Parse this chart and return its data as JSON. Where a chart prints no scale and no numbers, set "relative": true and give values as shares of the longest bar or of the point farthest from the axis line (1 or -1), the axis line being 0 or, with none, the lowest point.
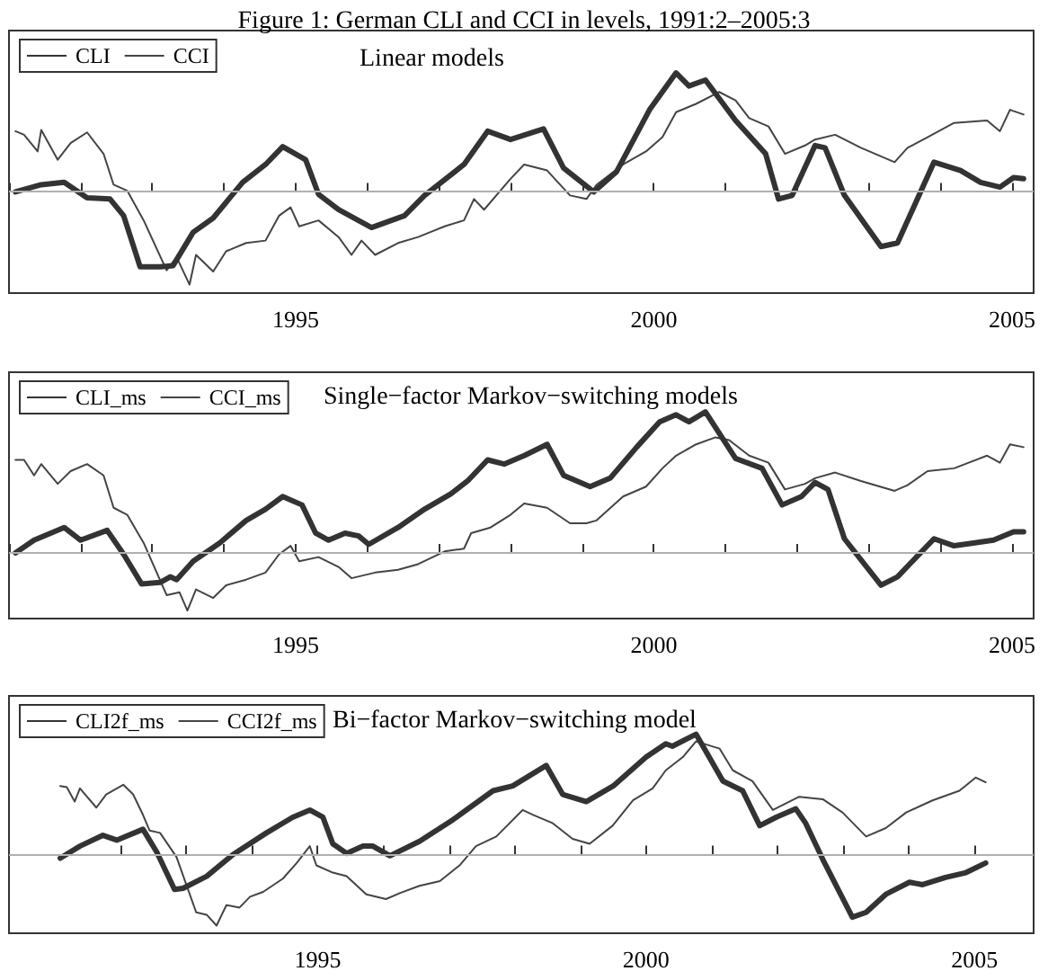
{
  "chart_data": [
    {
      "type": "line",
      "title": "Figure 1: German CLI and CCI in levels, 1991:2–2005:3",
      "subtitle": "Linear models",
      "relative": true,
      "legend": "top left",
      "tick_labels": "x",
      "grid": false,
      "marker": "none",
      "line_style": "solid",
      "xlim": [
        1991.0,
        2005.3
      ],
      "xticks": [
        {
          "value": 1991,
          "label": null
        },
        {
          "value": 1992,
          "label": null
        },
        {
          "value": 1993,
          "label": null
        },
        {
          "value": 1994,
          "label": null
        },
        1995,
        {
          "value": 1996,
          "label": null
        },
        {
          "value": 1997,
          "label": null
        },
        {
          "value": 1998,
          "label": null
        },
        {
          "value": 1999,
          "label": null
        },
        2000,
        {
          "value": 2001,
          "label": null
        },
        {
          "value": 2002,
          "label": null
        },
        {
          "value": 2003,
          "label": null
        },
        {
          "value": 2004,
          "label": null
        },
        2005
      ],
      "ref_lines": [
        {
          "axis": "y",
          "value": 0,
          "color": "#b0b0b0"
        }
      ],
      "series": [
        {
          "name": "CLI",
          "color": "#333333",
          "x": [
            1991.09,
            1991.45,
            1991.77,
            1992.09,
            1992.41,
            1992.6,
            1992.83,
            1993.11,
            1993.29,
            1993.57,
            1993.85,
            1994.26,
            1994.58,
            1994.82,
            1995.14,
            1995.32,
            1995.6,
            1996.06,
            1996.52,
            1996.8,
            1997.35,
            1997.68,
            1998.0,
            1998.46,
            1998.74,
            1999.16,
            1999.48,
            1999.94,
            2000.31,
            2000.49,
            2000.72,
            2001.14,
            2001.56,
            2001.74,
            2001.93,
            2002.25,
            2002.39,
            2002.66,
            2003.17,
            2003.4,
            2003.91,
            2004.28,
            2004.56,
            2004.83,
            2005.02,
            2005.16
          ],
          "values": [
            0,
            0.06,
            0.08,
            -0.05,
            -0.06,
            -0.2,
            -0.63,
            -0.63,
            -0.62,
            -0.34,
            -0.22,
            0.08,
            0.23,
            0.38,
            0.27,
            -0.02,
            -0.15,
            -0.3,
            -0.2,
            -0.03,
            0.23,
            0.51,
            0.44,
            0.53,
            0.2,
            0,
            0.17,
            0.69,
            1,
            0.89,
            0.94,
            0.6,
            0.32,
            -0.06,
            -0.03,
            0.39,
            0.37,
            -0.03,
            -0.46,
            -0.43,
            0.25,
            0.18,
            0.08,
            0.04,
            0.12,
            0.11
          ]
        },
        {
          "name": "CCI",
          "color": "#444444",
          "x": [
            1991.09,
            1991.21,
            1991.4,
            1991.45,
            1991.68,
            1991.86,
            1992.09,
            1992.32,
            1992.46,
            1992.65,
            1992.88,
            1993.2,
            1993.34,
            1993.52,
            1993.61,
            1993.85,
            1994.03,
            1994.31,
            1994.58,
            1994.77,
            1994.93,
            1995.05,
            1995.32,
            1995.6,
            1995.78,
            1995.92,
            1996.11,
            1996.43,
            1996.71,
            1997.08,
            1997.35,
            1997.49,
            1997.63,
            1998.0,
            1998.19,
            1998.51,
            1998.83,
            1999.06,
            1999.2,
            1999.57,
            1999.89,
            2000.12,
            2000.31,
            2000.59,
            2000.91,
            2001.14,
            2001.33,
            2001.6,
            2001.83,
            2002.11,
            2002.25,
            2002.53,
            2002.89,
            2003.36,
            2003.54,
            2003.82,
            2004.19,
            2004.65,
            2004.83,
            2004.97,
            2005.16
          ],
          "values": [
            0.51,
            0.48,
            0.34,
            0.52,
            0.27,
            0.41,
            0.5,
            0.32,
            0.06,
            0.01,
            -0.24,
            -0.66,
            -0.55,
            -0.78,
            -0.53,
            -0.67,
            -0.5,
            -0.43,
            -0.41,
            -0.2,
            -0.13,
            -0.29,
            -0.24,
            -0.38,
            -0.53,
            -0.41,
            -0.53,
            -0.43,
            -0.38,
            -0.29,
            -0.24,
            -0.06,
            -0.15,
            0.11,
            0.23,
            0.18,
            -0.03,
            -0.06,
            0.06,
            0.23,
            0.34,
            0.46,
            0.67,
            0.74,
            0.84,
            0.77,
            0.62,
            0.55,
            0.32,
            0.39,
            0.44,
            0.48,
            0.37,
            0.25,
            0.37,
            0.46,
            0.58,
            0.6,
            0.51,
            0.69,
            0.65
          ]
        }
      ]
    },
    {
      "type": "line",
      "title": "Single−factor Markov−switching models",
      "relative": true,
      "legend": "top left",
      "tick_labels": "x",
      "grid": false,
      "marker": "none",
      "line_style": "solid",
      "xlim": [
        1991.0,
        2005.3
      ],
      "xticks": [
        {
          "value": 1991,
          "label": null
        },
        {
          "value": 1992,
          "label": null
        },
        {
          "value": 1993,
          "label": null
        },
        {
          "value": 1994,
          "label": null
        },
        1995,
        {
          "value": 1996,
          "label": null
        },
        {
          "value": 1997,
          "label": null
        },
        {
          "value": 1998,
          "label": null
        },
        {
          "value": 1999,
          "label": null
        },
        2000,
        {
          "value": 2001,
          "label": null
        },
        {
          "value": 2002,
          "label": null
        },
        {
          "value": 2003,
          "label": null
        },
        {
          "value": 2004,
          "label": null
        },
        2005
      ],
      "ref_lines": [
        {
          "axis": "y",
          "value": 0,
          "color": "#b0b0b0"
        }
      ],
      "series": [
        {
          "name": "CLI_ms",
          "color": "#333333",
          "x": [
            1991.09,
            1991.35,
            1991.77,
            1992.0,
            1992.37,
            1992.6,
            1992.85,
            1993.11,
            1993.25,
            1993.34,
            1993.57,
            1993.94,
            1994.31,
            1994.58,
            1994.82,
            1995.09,
            1995.28,
            1995.46,
            1995.69,
            1995.88,
            1996.02,
            1996.43,
            1996.8,
            1997.17,
            1997.4,
            1997.68,
            1997.91,
            1998.19,
            1998.51,
            1998.74,
            1999.11,
            1999.39,
            1999.76,
            2000.08,
            2000.31,
            2000.49,
            2000.72,
            2001.14,
            2001.51,
            2001.79,
            2002.06,
            2002.25,
            2002.43,
            2002.66,
            2003.17,
            2003.4,
            2003.91,
            2004.19,
            2004.46,
            2004.74,
            2005.02,
            2005.16
          ],
          "values": [
            0,
            0.09,
            0.18,
            0.09,
            0.16,
            -0.01,
            -0.22,
            -0.21,
            -0.17,
            -0.19,
            -0.06,
            0.07,
            0.23,
            0.31,
            0.4,
            0.34,
            0.14,
            0.09,
            0.14,
            0.12,
            0.06,
            0.18,
            0.31,
            0.42,
            0.51,
            0.66,
            0.63,
            0.69,
            0.77,
            0.55,
            0.47,
            0.53,
            0.75,
            0.93,
            0.98,
            0.93,
            1,
            0.67,
            0.6,
            0.34,
            0.4,
            0.5,
            0.45,
            0.1,
            -0.23,
            -0.17,
            0.1,
            0.05,
            0.07,
            0.09,
            0.15,
            0.15
          ]
        },
        {
          "name": "CCI_ms",
          "color": "#444444",
          "x": [
            1991.09,
            1991.21,
            1991.35,
            1991.45,
            1991.68,
            1991.86,
            1992.09,
            1992.32,
            1992.46,
            1992.65,
            1992.88,
            1993.2,
            1993.38,
            1993.49,
            1993.61,
            1993.85,
            1994.03,
            1994.31,
            1994.58,
            1994.77,
            1994.93,
            1995.05,
            1995.32,
            1995.6,
            1995.78,
            1996.11,
            1996.43,
            1996.71,
            1997.08,
            1997.35,
            1997.45,
            1997.72,
            1998.0,
            1998.19,
            1998.51,
            1998.83,
            1999.06,
            1999.2,
            1999.57,
            1999.89,
            2000.12,
            2000.31,
            2000.59,
            2000.86,
            2001.05,
            2001.33,
            2001.6,
            2001.83,
            2002.11,
            2002.25,
            2002.53,
            2002.89,
            2003.36,
            2003.54,
            2003.82,
            2004.19,
            2004.65,
            2004.83,
            2004.97,
            2005.16
          ],
          "values": [
            0.66,
            0.66,
            0.55,
            0.63,
            0.49,
            0.58,
            0.63,
            0.55,
            0.32,
            0.27,
            0.07,
            -0.3,
            -0.28,
            -0.41,
            -0.26,
            -0.32,
            -0.23,
            -0.19,
            -0.14,
            -0.01,
            0.05,
            -0.06,
            -0.03,
            -0.1,
            -0.18,
            -0.14,
            -0.12,
            -0.08,
            0.01,
            0.03,
            0.14,
            0.18,
            0.27,
            0.35,
            0.32,
            0.21,
            0.21,
            0.23,
            0.4,
            0.47,
            0.6,
            0.69,
            0.77,
            0.82,
            0.8,
            0.69,
            0.64,
            0.45,
            0.49,
            0.53,
            0.57,
            0.51,
            0.44,
            0.48,
            0.58,
            0.6,
            0.69,
            0.64,
            0.77,
            0.75
          ]
        }
      ]
    },
    {
      "type": "line",
      "title": "Bi−factor Markov−switching model",
      "relative": true,
      "legend": "top left",
      "tick_labels": "x",
      "grid": false,
      "marker": "none",
      "line_style": "solid",
      "xlim": [
        1990.3,
        2005.9
      ],
      "xticks": [
        {
          "value": 1992,
          "label": null
        },
        {
          "value": 1993,
          "label": null
        },
        {
          "value": 1994,
          "label": null
        },
        1995,
        {
          "value": 1996,
          "label": null
        },
        {
          "value": 1997,
          "label": null
        },
        {
          "value": 1998,
          "label": null
        },
        {
          "value": 1999,
          "label": null
        },
        2000,
        {
          "value": 2001,
          "label": null
        },
        {
          "value": 2002,
          "label": null
        },
        {
          "value": 2003,
          "label": null
        },
        {
          "value": 2004,
          "label": null
        },
        2005
      ],
      "ref_lines": [
        {
          "axis": "y",
          "value": 0,
          "color": "#b0b0b0"
        }
      ],
      "series": [
        {
          "name": "CLI2f_ms",
          "color": "#333333",
          "x": [
            1991.08,
            1991.38,
            1991.73,
            1991.94,
            1992.34,
            1992.55,
            1992.82,
            1992.95,
            1993.31,
            1993.71,
            1994.22,
            1994.62,
            1994.88,
            1995.08,
            1995.23,
            1995.44,
            1995.69,
            1995.84,
            1996.1,
            1996.55,
            1997.06,
            1997.67,
            1997.97,
            1998.48,
            1998.73,
            1999.09,
            1999.5,
            2000.0,
            2000.3,
            2000.4,
            2000.76,
            2001.17,
            2001.47,
            2001.73,
            2001.98,
            2002.28,
            2002.43,
            2002.69,
            2003.14,
            2003.35,
            2003.65,
            2004.01,
            2004.21,
            2004.56,
            2004.87,
            2005.17
          ],
          "values": [
            -0.03,
            0.07,
            0.16,
            0.12,
            0.21,
            0.02,
            -0.29,
            -0.28,
            -0.18,
            0,
            0.18,
            0.31,
            0.37,
            0.31,
            0.09,
            0.01,
            0.07,
            0.07,
            -0.01,
            0.11,
            0.29,
            0.53,
            0.57,
            0.74,
            0.5,
            0.44,
            0.57,
            0.81,
            0.92,
            0.9,
            1,
            0.61,
            0.53,
            0.24,
            0.31,
            0.38,
            0.26,
            -0.04,
            -0.52,
            -0.48,
            -0.33,
            -0.23,
            -0.25,
            -0.19,
            -0.15,
            -0.07
          ]
        },
        {
          "name": "CCI2f_ms",
          "color": "#444444",
          "x": [
            1991.08,
            1991.18,
            1991.3,
            1991.38,
            1991.63,
            1991.78,
            1992.04,
            1992.19,
            1992.34,
            1992.44,
            1992.6,
            1992.85,
            1993.15,
            1993.31,
            1993.46,
            1993.61,
            1993.81,
            1993.97,
            1994.17,
            1994.47,
            1994.68,
            1994.88,
            1994.98,
            1995.23,
            1995.44,
            1995.74,
            1996.04,
            1996.25,
            1996.55,
            1996.86,
            1997.16,
            1997.41,
            1997.72,
            1998.12,
            1998.28,
            1998.58,
            1998.88,
            1999.14,
            1999.49,
            1999.8,
            2000.1,
            2000.3,
            2000.56,
            2000.76,
            2001.12,
            2001.32,
            2001.62,
            2001.93,
            2002.33,
            2002.69,
            2002.99,
            2003.35,
            2003.65,
            2003.96,
            2004.36,
            2004.77,
            2005.02,
            2005.17
          ],
          "values": [
            0.57,
            0.56,
            0.44,
            0.55,
            0.39,
            0.5,
            0.58,
            0.5,
            0.33,
            0.2,
            0.18,
            -0.02,
            -0.48,
            -0.5,
            -0.59,
            -0.42,
            -0.44,
            -0.35,
            -0.31,
            -0.2,
            -0.07,
            0.07,
            -0.09,
            -0.15,
            -0.18,
            -0.33,
            -0.37,
            -0.32,
            -0.26,
            -0.22,
            -0.09,
            0.07,
            0.15,
            0.37,
            0.33,
            0.26,
            0.13,
            0.09,
            0.24,
            0.45,
            0.55,
            0.7,
            0.81,
            0.94,
            0.88,
            0.7,
            0.61,
            0.37,
            0.48,
            0.46,
            0.35,
            0.15,
            0.22,
            0.35,
            0.45,
            0.53,
            0.64,
            0.6
          ]
        }
      ]
    }
  ]
}
